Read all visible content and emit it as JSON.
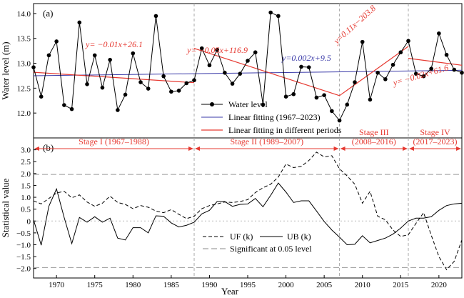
{
  "chart_data": [
    {
      "type": "line",
      "panel_label": "(a)",
      "ylabel": "Water level (m)",
      "xlim": [
        1967,
        2023
      ],
      "ylim": [
        11.5,
        14.2
      ],
      "yticks": [
        "12.0",
        "12.5",
        "13.0",
        "13.5",
        "14.0"
      ],
      "grid": false,
      "stage_boundaries": [
        1988,
        2007,
        2016
      ],
      "series": [
        {
          "name": "Water level",
          "x": [
            1967,
            1968,
            1969,
            1970,
            1971,
            1972,
            1973,
            1974,
            1975,
            1976,
            1977,
            1978,
            1979,
            1980,
            1981,
            1982,
            1983,
            1984,
            1985,
            1986,
            1987,
            1988,
            1989,
            1990,
            1991,
            1992,
            1993,
            1994,
            1995,
            1996,
            1997,
            1998,
            1999,
            2000,
            2001,
            2002,
            2003,
            2004,
            2005,
            2006,
            2007,
            2008,
            2009,
            2010,
            2011,
            2012,
            2013,
            2014,
            2015,
            2016,
            2017,
            2018,
            2019,
            2020,
            2021,
            2022,
            2023
          ],
          "values": [
            12.92,
            12.33,
            13.16,
            13.44,
            12.16,
            12.08,
            13.82,
            12.58,
            13.16,
            12.51,
            13.07,
            12.06,
            12.37,
            13.2,
            12.62,
            12.49,
            13.95,
            12.74,
            12.43,
            12.45,
            12.6,
            12.66,
            13.3,
            12.96,
            13.27,
            12.81,
            12.59,
            12.79,
            13.05,
            13.22,
            12.17,
            14.02,
            13.95,
            12.33,
            12.38,
            12.93,
            12.92,
            12.31,
            12.36,
            12.04,
            11.85,
            12.17,
            12.62,
            13.43,
            12.27,
            12.81,
            12.68,
            12.97,
            13.22,
            13.45,
            12.79,
            12.74,
            12.89,
            13.6,
            13.17,
            12.87,
            12.81
          ]
        },
        {
          "name": "Linear fitting (1967–2023)",
          "x": [
            1967,
            2023
          ],
          "values": [
            12.75,
            12.86
          ]
        },
        {
          "name": "Linear fitting in different periods",
          "segments": [
            {
              "x": [
                1967,
                1988
              ],
              "values": [
                12.82,
                12.61
              ]
            },
            {
              "x": [
                1988,
                2007
              ],
              "values": [
                13.3,
                12.35
              ]
            },
            {
              "x": [
                2007,
                2016
              ],
              "values": [
                12.35,
                13.34
              ]
            },
            {
              "x": [
                2016,
                2023
              ],
              "values": [
                13.1,
                12.96
              ]
            }
          ]
        }
      ],
      "annotations": [
        {
          "text": "y= −0.01x+26.1",
          "x": 1976
        },
        {
          "text": "y= −0.05x+116.9",
          "x": 1994
        },
        {
          "text": "y=0.002x+9.5",
          "x": 2003
        },
        {
          "text": "y=0.11x−203.8",
          "x": 2012
        },
        {
          "text": "y= −0.02x+61.6",
          "x": 2017
        }
      ],
      "legend": "bottom-center"
    },
    {
      "type": "line",
      "panel_label": "(b)",
      "xlabel": "Year",
      "ylabel": "Statistical value",
      "xlim": [
        1967,
        2023
      ],
      "ylim": [
        -2.4,
        3.5
      ],
      "xticks": [
        "1970",
        "1975",
        "1980",
        "1985",
        "1990",
        "1995",
        "2000",
        "2005",
        "2010",
        "2015",
        "2020"
      ],
      "yticks": [
        "−2.0",
        "−1.5",
        "−1.0",
        "−0.5",
        "0",
        "0.5",
        "1.0",
        "1.5",
        "2.0",
        "2.5",
        "3.0"
      ],
      "significance": [
        1.96,
        -1.96
      ],
      "stages": [
        {
          "label": "Stage I (1967–1988)",
          "from": 1967,
          "to": 1988
        },
        {
          "label": "Stage II (1989–2007)",
          "from": 1988,
          "to": 2007
        },
        {
          "label": "Stage III (2008–2016)",
          "from": 2007,
          "to": 2016
        },
        {
          "label": "Stage IV (2017–2023)",
          "from": 2016,
          "to": 2023
        }
      ],
      "x": [
        1967,
        1968,
        1969,
        1970,
        1971,
        1972,
        1973,
        1974,
        1975,
        1976,
        1977,
        1978,
        1979,
        1980,
        1981,
        1982,
        1983,
        1984,
        1985,
        1986,
        1987,
        1988,
        1989,
        1990,
        1991,
        1992,
        1993,
        1994,
        1995,
        1996,
        1997,
        1998,
        1999,
        2000,
        2001,
        2002,
        2003,
        2004,
        2005,
        2006,
        2007,
        2008,
        2009,
        2010,
        2011,
        2012,
        2013,
        2014,
        2015,
        2016,
        2017,
        2018,
        2019,
        2020,
        2021,
        2022,
        2023
      ],
      "series": [
        {
          "name": "UF (k)",
          "style": "dashed",
          "values": [
            0.85,
            0.72,
            0.95,
            1.18,
            1.25,
            0.98,
            1.1,
            0.8,
            0.62,
            0.75,
            1.05,
            0.78,
            0.7,
            0.52,
            0.65,
            0.58,
            0.42,
            0.35,
            0.48,
            0.28,
            0.1,
            0.2,
            0.52,
            0.65,
            0.72,
            0.8,
            0.78,
            0.82,
            0.9,
            1.2,
            1.4,
            1.55,
            1.85,
            2.4,
            2.25,
            2.3,
            2.55,
            2.9,
            2.7,
            2.75,
            2.2,
            1.9,
            1.55,
            0.75,
            1.25,
            0.2,
            0.05,
            -0.38,
            -0.65,
            -0.58,
            -0.1,
            0.35,
            -0.6,
            -1.5,
            -2.05,
            -1.7,
            -0.8
          ]
        },
        {
          "name": "UB (k)",
          "style": "solid",
          "values": [
            0.05,
            -1.02,
            0.62,
            1.35,
            0.15,
            -0.95,
            0.15,
            -0.05,
            0.18,
            -0.05,
            0.12,
            -0.72,
            -0.8,
            -0.28,
            -0.28,
            -0.5,
            0.22,
            0.2,
            -0.08,
            -0.25,
            -0.18,
            -0.05,
            0.3,
            0.45,
            0.82,
            0.82,
            0.62,
            0.7,
            0.72,
            0.95,
            0.6,
            1.08,
            1.6,
            1.22,
            0.78,
            0.85,
            0.85,
            0.42,
            -0.02,
            -0.38,
            -0.68,
            -1.0,
            -0.98,
            -0.62,
            -0.92,
            -0.82,
            -0.72,
            -0.55,
            -0.3,
            0.0,
            0.12,
            0.12,
            0.18,
            0.45,
            0.65,
            0.72,
            0.75
          ]
        },
        {
          "name": "Significant at 0.05 level",
          "style": "dashed-gray"
        }
      ],
      "legend": "bottom-center"
    }
  ]
}
